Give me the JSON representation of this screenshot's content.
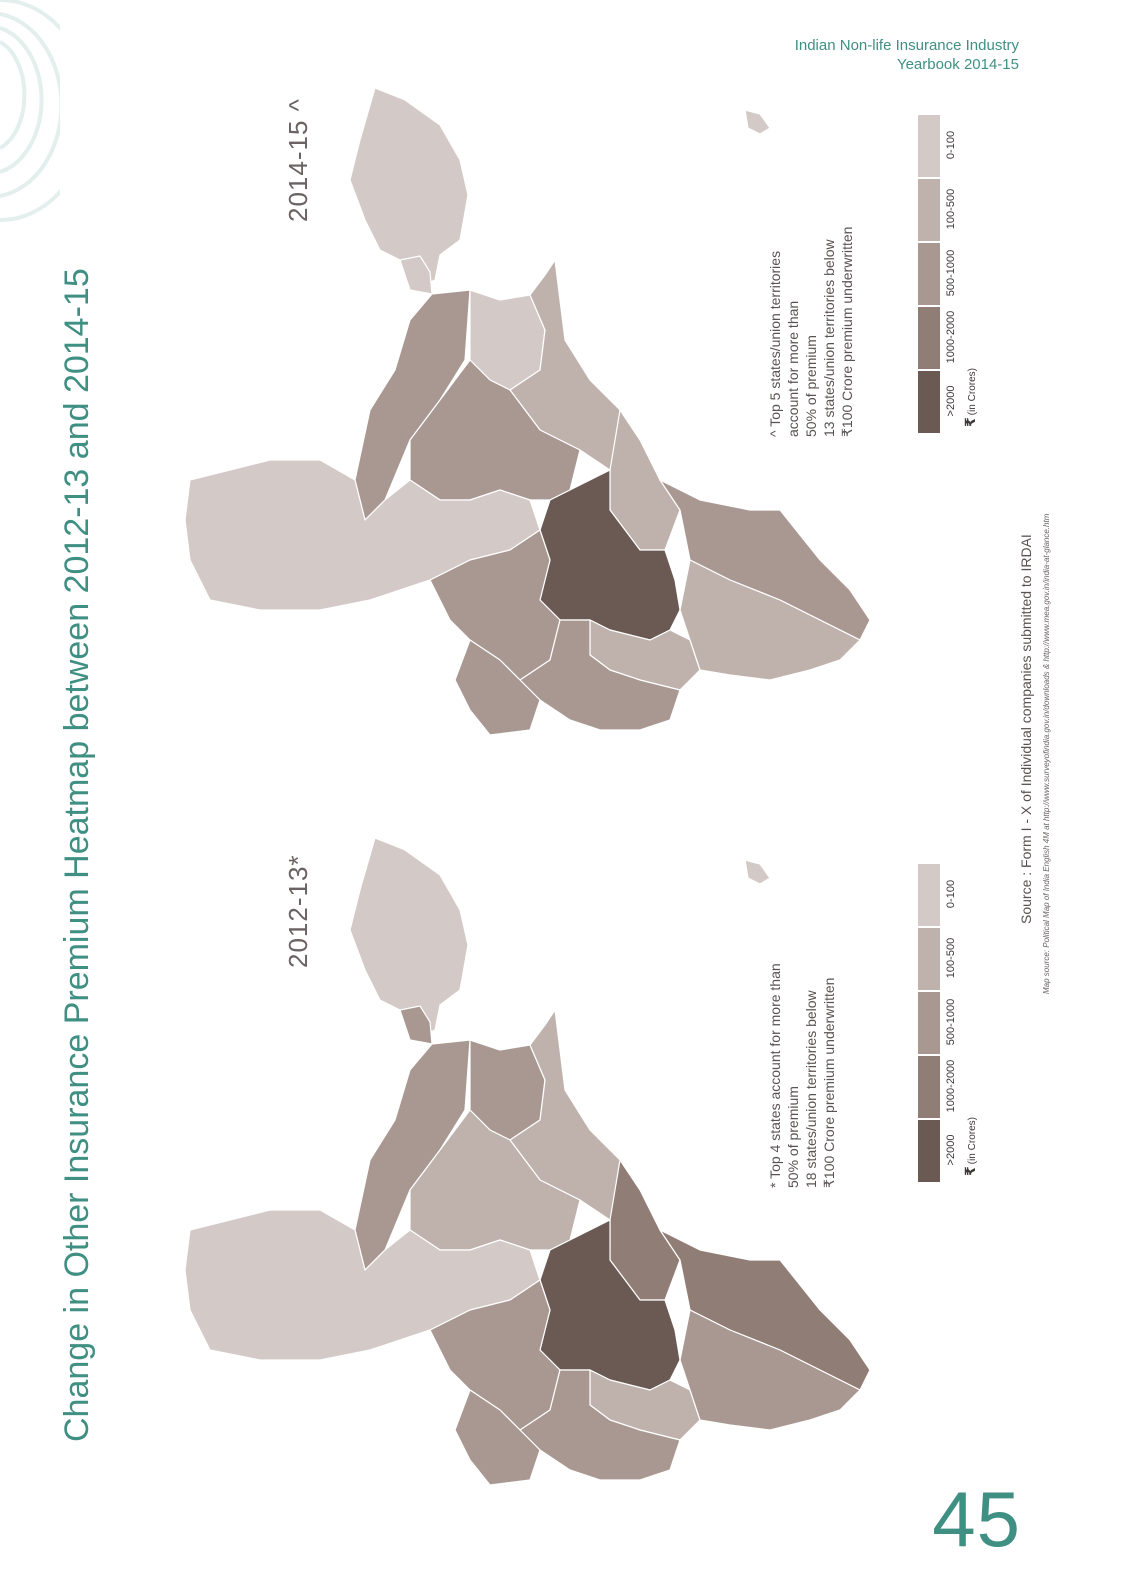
{
  "header": {
    "line1": "Indian Non-life Insurance Industry",
    "line2": "Yearbook 2014-15"
  },
  "title": "Change in Other Insurance Premium Heatmap between 2012-13 and 2014-15",
  "page_number": "45",
  "colors": {
    "accent": "#3f8f83",
    "scale": [
      "#6b5a53",
      "#8f7d76",
      "#a99892",
      "#bfb2ad",
      "#d3c9c6"
    ]
  },
  "legend_ranges": [
    ">2000",
    "1000-2000",
    "500-1000",
    "100-500",
    "0-100"
  ],
  "legend_unit": "(in Crores)",
  "rupee_symbol": "₹",
  "maps": [
    {
      "id": "2014-15",
      "title": "2014-15 ^",
      "notes": [
        "^ Top 5 states/union territories",
        "account for more than",
        "50% of premium",
        "13 states/union territories below",
        "₹100 Crore premium underwritten"
      ]
    },
    {
      "id": "2012-13",
      "title": "2012-13*",
      "notes": [
        "* Top 4 states account for more than",
        "50% of premium",
        "18 states/union territories below",
        "₹100 Crore premium underwritten"
      ]
    }
  ],
  "source": "Source : Form I - X of Individual companies submitted to IRDAI",
  "map_source": "Map source: Political Map of India English 4M at http://www.surveyofindia.gov.in/downloads & http://www.mea.gov.in/india-at-glance.htm"
}
